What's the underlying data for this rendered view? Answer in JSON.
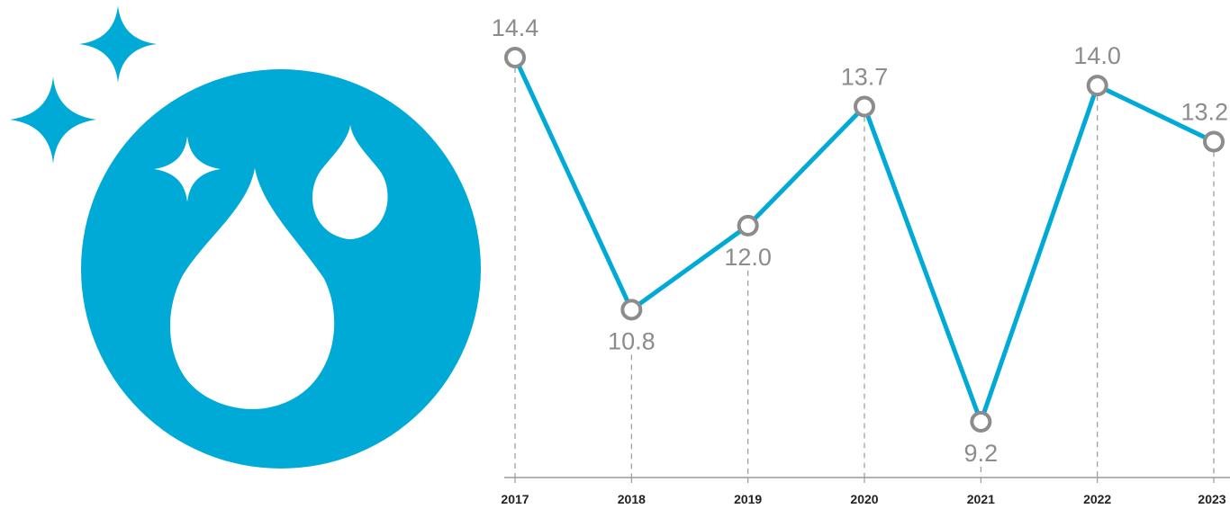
{
  "colors": {
    "accent": "#00aad6",
    "marker_stroke": "#8c8c8c",
    "label_text": "#8c8c8c",
    "axis": "#9a9a9a"
  },
  "icon": {
    "name": "water-drops-sparkle-icon"
  },
  "chart_data": {
    "type": "line",
    "x": [
      "2017",
      "2018",
      "2019",
      "2020",
      "2021",
      "2022",
      "2023"
    ],
    "series": [
      {
        "values": [
          14.4,
          10.8,
          12.0,
          13.7,
          9.2,
          14.0,
          13.2
        ],
        "labels": [
          "14.4",
          "10.8",
          "12.0",
          "13.7",
          "9.2",
          "14.0",
          "13.2"
        ],
        "label_position": [
          "above",
          "below",
          "below",
          "above",
          "below",
          "above",
          "above"
        ]
      }
    ],
    "title": "",
    "xlabel": "",
    "ylabel": "",
    "ylim": [
      7.5,
      14.4
    ],
    "grid": "vertical dashed guides at each year",
    "legend": "none"
  }
}
